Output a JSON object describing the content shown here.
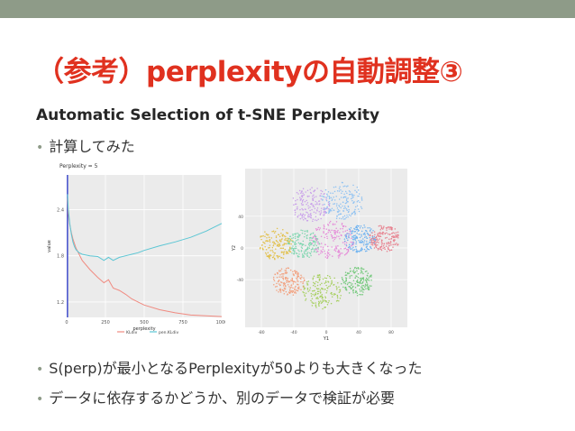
{
  "slide": {
    "title": "（参考）perplexityの自動調整③",
    "subtitle": "Automatic Selection of t-SNE Perplexity",
    "bullets": [
      "計算してみた",
      "S(perp)が最小となるPerplexityが50よりも大きくなった",
      "データに依存するかどうか、別のデータで検証が必要"
    ]
  },
  "colors": {
    "title": "#e0311f",
    "topbar": "#8e9b88",
    "kl": "#f08a80",
    "jen": "#5bc6d4"
  },
  "chart_data": [
    {
      "type": "line",
      "title": "Perplexity = 5",
      "xlabel": "perplexity",
      "ylabel": "value",
      "xlim": [
        0,
        1000
      ],
      "ylim": [
        1.0,
        2.85
      ],
      "xticks": [
        "0",
        "250",
        "500",
        "750",
        "1000"
      ],
      "yticks": [
        "1.2",
        "1.8",
        "2.4"
      ],
      "ytick_values": [
        1.2,
        1.8,
        2.4
      ],
      "vline_x": 5,
      "legend": [
        "KLdiv",
        "pen.KLdiv"
      ],
      "legend_placement": "bottom",
      "series": [
        {
          "name": "KLdiv",
          "color": "#f08a80",
          "x": [
            5,
            10,
            20,
            30,
            40,
            50,
            60,
            80,
            100,
            150,
            200,
            240,
            270,
            300,
            340,
            380,
            420,
            460,
            500,
            600,
            700,
            800,
            900,
            1000
          ],
          "y": [
            2.55,
            2.35,
            2.2,
            2.1,
            2.02,
            1.96,
            1.9,
            1.82,
            1.74,
            1.62,
            1.52,
            1.45,
            1.49,
            1.38,
            1.35,
            1.3,
            1.24,
            1.2,
            1.16,
            1.1,
            1.06,
            1.03,
            1.02,
            1.01
          ]
        },
        {
          "name": "pen.KLdiv",
          "color": "#5bc6d4",
          "x": [
            5,
            10,
            20,
            30,
            40,
            50,
            60,
            80,
            100,
            150,
            200,
            240,
            270,
            300,
            340,
            380,
            420,
            460,
            500,
            600,
            700,
            800,
            900,
            1000
          ],
          "y": [
            2.6,
            2.42,
            2.22,
            2.08,
            1.98,
            1.92,
            1.88,
            1.84,
            1.82,
            1.8,
            1.79,
            1.74,
            1.78,
            1.74,
            1.78,
            1.8,
            1.82,
            1.84,
            1.87,
            1.93,
            1.98,
            2.04,
            2.12,
            2.22
          ]
        }
      ]
    },
    {
      "type": "scatter",
      "xlabel": "Y1",
      "ylabel": "Y2",
      "xlim": [
        -100,
        100
      ],
      "ylim": [
        -100,
        100
      ],
      "xticks": [
        "-80",
        "-40",
        "0",
        "40",
        "80"
      ],
      "yticks": [
        "-40",
        "0",
        "40"
      ],
      "clusters": [
        {
          "cx": -20,
          "cy": 55,
          "r": 22,
          "color": "#c9a0ea"
        },
        {
          "cx": 20,
          "cy": 60,
          "r": 24,
          "color": "#8fc2f2"
        },
        {
          "cx": -62,
          "cy": 5,
          "r": 20,
          "color": "#e2c04a"
        },
        {
          "cx": -28,
          "cy": 5,
          "r": 18,
          "color": "#7fd6b0"
        },
        {
          "cx": 8,
          "cy": 10,
          "r": 24,
          "color": "#e58ad8"
        },
        {
          "cx": 42,
          "cy": 12,
          "r": 18,
          "color": "#6fb3f0"
        },
        {
          "cx": 72,
          "cy": 12,
          "r": 17,
          "color": "#e7808e"
        },
        {
          "cx": -46,
          "cy": -42,
          "r": 18,
          "color": "#f2a07e"
        },
        {
          "cx": -5,
          "cy": -55,
          "r": 22,
          "color": "#a6cf5e"
        },
        {
          "cx": 38,
          "cy": -42,
          "r": 18,
          "color": "#74c97c"
        }
      ]
    }
  ]
}
